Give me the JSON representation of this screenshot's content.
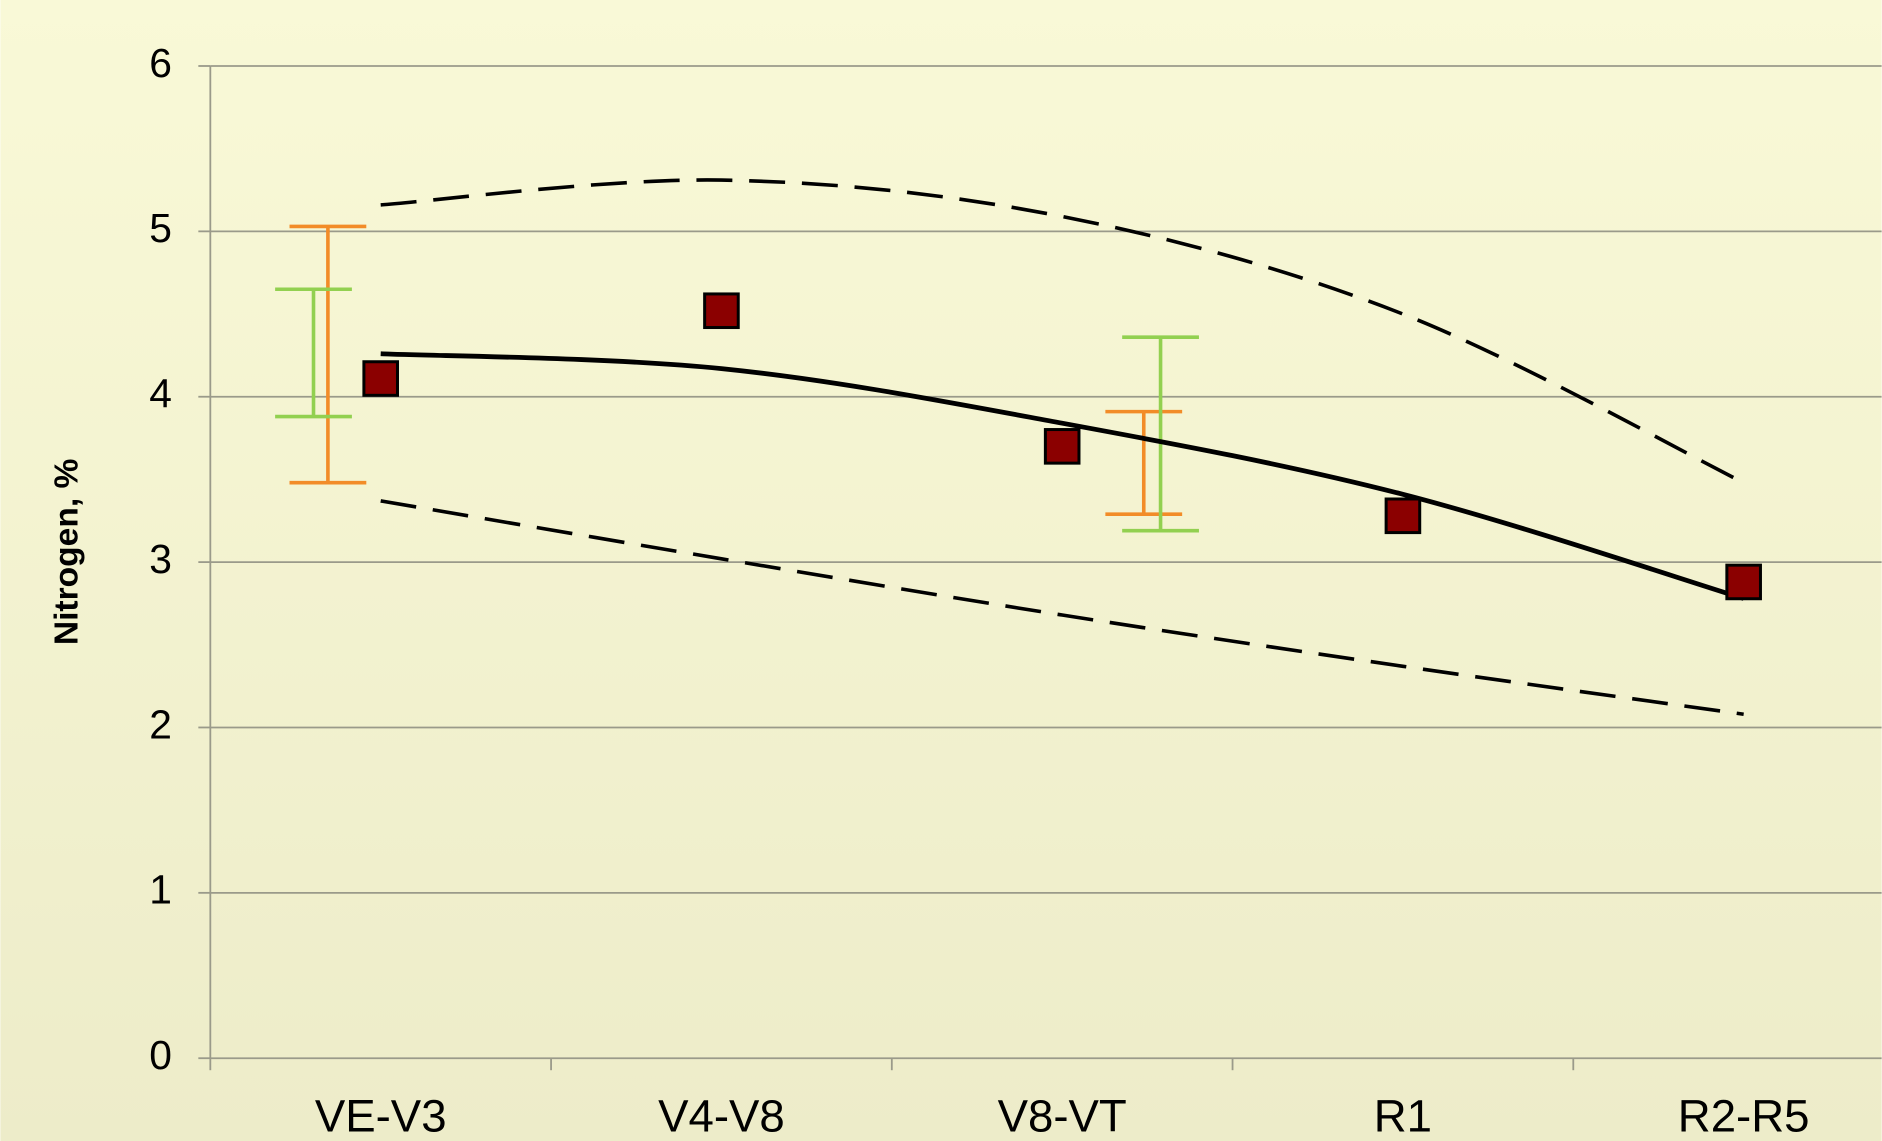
{
  "chart_data": {
    "type": "line",
    "y_label": "Nitrogen, %",
    "categories": [
      "VE-V3",
      "V4-V8",
      "V8-VT",
      "R1",
      "R2-R5"
    ],
    "ylim": [
      0,
      6
    ],
    "yticks": [
      0,
      1,
      2,
      3,
      4,
      5,
      6
    ],
    "grid": true,
    "series": [
      {
        "color": "#8b0000",
        "style": "marker",
        "values": [
          4.11,
          4.52,
          3.7,
          3.28,
          2.88
        ]
      },
      {
        "color": "#000000",
        "style": "solid",
        "values": [
          4.26,
          4.17,
          3.84,
          3.41,
          2.78
        ]
      },
      {
        "color": "#000000",
        "style": "dashed",
        "values": [
          5.16,
          5.31,
          5.09,
          4.5,
          3.48
        ]
      },
      {
        "color": "#000000",
        "style": "dashed",
        "values": [
          3.37,
          3.02,
          2.68,
          2.37,
          2.08
        ]
      }
    ],
    "error_bars": [
      {
        "color": "#f28c28",
        "low": [
          3.48,
          null,
          null,
          null,
          null
        ],
        "high": [
          5.03,
          null,
          null,
          null,
          null
        ]
      },
      {
        "color": "#92d050",
        "low": [
          3.88,
          null,
          null,
          null,
          null
        ],
        "high": [
          4.65,
          null,
          null,
          null,
          null
        ]
      },
      {
        "color": "#f28c28",
        "low": [
          null,
          null,
          3.29,
          null,
          null
        ],
        "high": [
          null,
          null,
          3.91,
          null,
          null
        ]
      },
      {
        "color": "#92d050",
        "low": [
          null,
          null,
          3.19,
          null,
          null
        ],
        "high": [
          null,
          null,
          4.36,
          null,
          null
        ]
      }
    ]
  }
}
